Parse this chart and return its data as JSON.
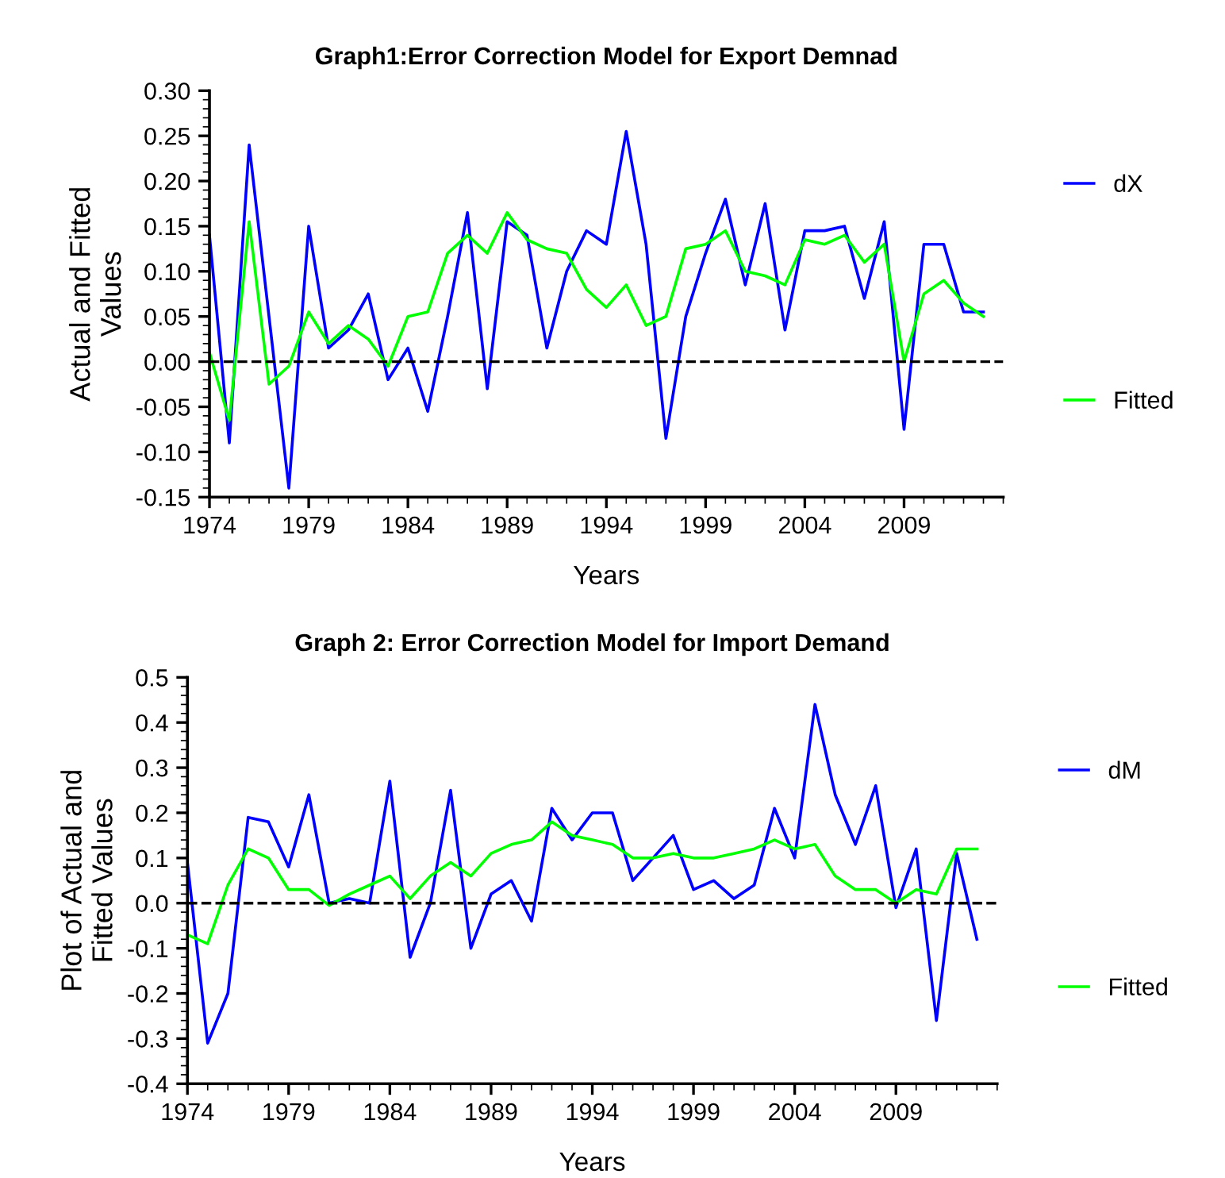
{
  "chart_data": [
    {
      "type": "line",
      "title": "Graph1:Error Correction Model for Export Demnad",
      "xlabel": "Years",
      "ylabel": "Actual and Fitted\nValues",
      "x": [
        1974,
        1975,
        1976,
        1977,
        1978,
        1979,
        1980,
        1981,
        1982,
        1983,
        1984,
        1985,
        1986,
        1987,
        1988,
        1989,
        1990,
        1991,
        1992,
        1993,
        1994,
        1995,
        1996,
        1997,
        1998,
        1999,
        2000,
        2001,
        2002,
        2003,
        2004,
        2005,
        2006,
        2007,
        2008,
        2009,
        2010,
        2011,
        2012,
        2013
      ],
      "series": [
        {
          "name": "dX",
          "color": "#0000ff",
          "values": [
            0.14,
            -0.09,
            0.24,
            0.05,
            -0.14,
            0.15,
            0.015,
            0.035,
            0.075,
            -0.02,
            0.015,
            -0.055,
            0.05,
            0.165,
            -0.03,
            0.155,
            0.14,
            0.015,
            0.1,
            0.145,
            0.13,
            0.255,
            0.13,
            -0.085,
            0.05,
            0.12,
            0.18,
            0.085,
            0.175,
            0.035,
            0.145,
            0.145,
            0.15,
            0.07,
            0.155,
            -0.075,
            0.13,
            0.13,
            0.055,
            0.055
          ]
        },
        {
          "name": "Fitted",
          "color": "#00ff00",
          "values": [
            0.01,
            -0.065,
            0.155,
            -0.025,
            -0.005,
            0.055,
            0.02,
            0.04,
            0.025,
            -0.005,
            0.05,
            0.055,
            0.12,
            0.14,
            0.12,
            0.165,
            0.135,
            0.125,
            0.12,
            0.08,
            0.06,
            0.085,
            0.04,
            0.05,
            0.125,
            0.13,
            0.145,
            0.1,
            0.095,
            0.085,
            0.135,
            0.13,
            0.14,
            0.11,
            0.13,
            0.0,
            0.075,
            0.09,
            0.065,
            0.05
          ]
        }
      ],
      "xlim": [
        1974,
        2014
      ],
      "xticks": [
        1974,
        1979,
        1984,
        1989,
        1994,
        1999,
        2004,
        2009
      ],
      "ylim": [
        -0.15,
        0.3
      ],
      "yticks": [
        {
          "value": -0.15,
          "label": "-0.15"
        },
        {
          "value": -0.1,
          "label": "-0.10"
        },
        {
          "value": -0.05,
          "label": "-0.05"
        },
        {
          "value": 0,
          "label": "0.00"
        },
        {
          "value": 0.05,
          "label": "0.05"
        },
        {
          "value": 0.1,
          "label": "0.10"
        },
        {
          "value": 0.15,
          "label": "0.15"
        },
        {
          "value": 0.2,
          "label": "0.20"
        },
        {
          "value": 0.25,
          "label": "0.25"
        },
        {
          "value": 0.3,
          "label": "0.30"
        }
      ],
      "ref_lines": [
        {
          "axis": "y",
          "value": 0,
          "color": "#000000",
          "line_style": "dashed"
        }
      ],
      "legend": "right",
      "grid": false,
      "line_style": "solid",
      "marker": "none"
    },
    {
      "type": "line",
      "title": "Graph 2: Error Correction Model for Import Demand",
      "xlabel": "Years",
      "ylabel": "Plot of Actual and\nFitted Values",
      "x": [
        1974,
        1975,
        1976,
        1977,
        1978,
        1979,
        1980,
        1981,
        1982,
        1983,
        1984,
        1985,
        1986,
        1987,
        1988,
        1989,
        1990,
        1991,
        1992,
        1993,
        1994,
        1995,
        1996,
        1997,
        1998,
        1999,
        2000,
        2001,
        2002,
        2003,
        2004,
        2005,
        2006,
        2007,
        2008,
        2009,
        2010,
        2011,
        2012,
        2013
      ],
      "series": [
        {
          "name": "dM",
          "color": "#0000ff",
          "values": [
            0.09,
            -0.31,
            -0.2,
            0.19,
            0.18,
            0.08,
            0.24,
            0.0,
            0.01,
            0.0,
            0.27,
            -0.12,
            0.0,
            0.25,
            -0.1,
            0.02,
            0.05,
            -0.04,
            0.21,
            0.14,
            0.2,
            0.2,
            0.05,
            0.1,
            0.15,
            0.03,
            0.05,
            0.01,
            0.04,
            0.21,
            0.1,
            0.44,
            0.24,
            0.13,
            0.26,
            -0.01,
            0.12,
            -0.26,
            0.11,
            -0.08
          ]
        },
        {
          "name": "Fitted",
          "color": "#00ff00",
          "values": [
            -0.07,
            -0.09,
            0.04,
            0.12,
            0.1,
            0.03,
            0.03,
            -0.005,
            0.02,
            0.04,
            0.06,
            0.01,
            0.06,
            0.09,
            0.06,
            0.11,
            0.13,
            0.14,
            0.18,
            0.15,
            0.14,
            0.13,
            0.1,
            0.1,
            0.11,
            0.1,
            0.1,
            0.11,
            0.12,
            0.14,
            0.12,
            0.13,
            0.06,
            0.03,
            0.03,
            0.0,
            0.03,
            0.02,
            0.12,
            0.12
          ]
        }
      ],
      "xlim": [
        1974,
        2014
      ],
      "xticks": [
        1974,
        1979,
        1984,
        1989,
        1994,
        1999,
        2004,
        2009
      ],
      "ylim": [
        -0.4,
        0.5
      ],
      "yticks": [
        {
          "value": -0.4,
          "label": "-0.4"
        },
        {
          "value": -0.3,
          "label": "-0.3"
        },
        {
          "value": -0.2,
          "label": "-0.2"
        },
        {
          "value": -0.1,
          "label": "-0.1"
        },
        {
          "value": 0,
          "label": "0.0"
        },
        {
          "value": 0.1,
          "label": "0.1"
        },
        {
          "value": 0.2,
          "label": "0.2"
        },
        {
          "value": 0.3,
          "label": "0.3"
        },
        {
          "value": 0.4,
          "label": "0.4"
        },
        {
          "value": 0.5,
          "label": "0.5"
        }
      ],
      "ref_lines": [
        {
          "axis": "y",
          "value": 0,
          "color": "#000000",
          "line_style": "dashed"
        }
      ],
      "legend": "right",
      "grid": false,
      "line_style": "solid",
      "marker": "none"
    }
  ]
}
